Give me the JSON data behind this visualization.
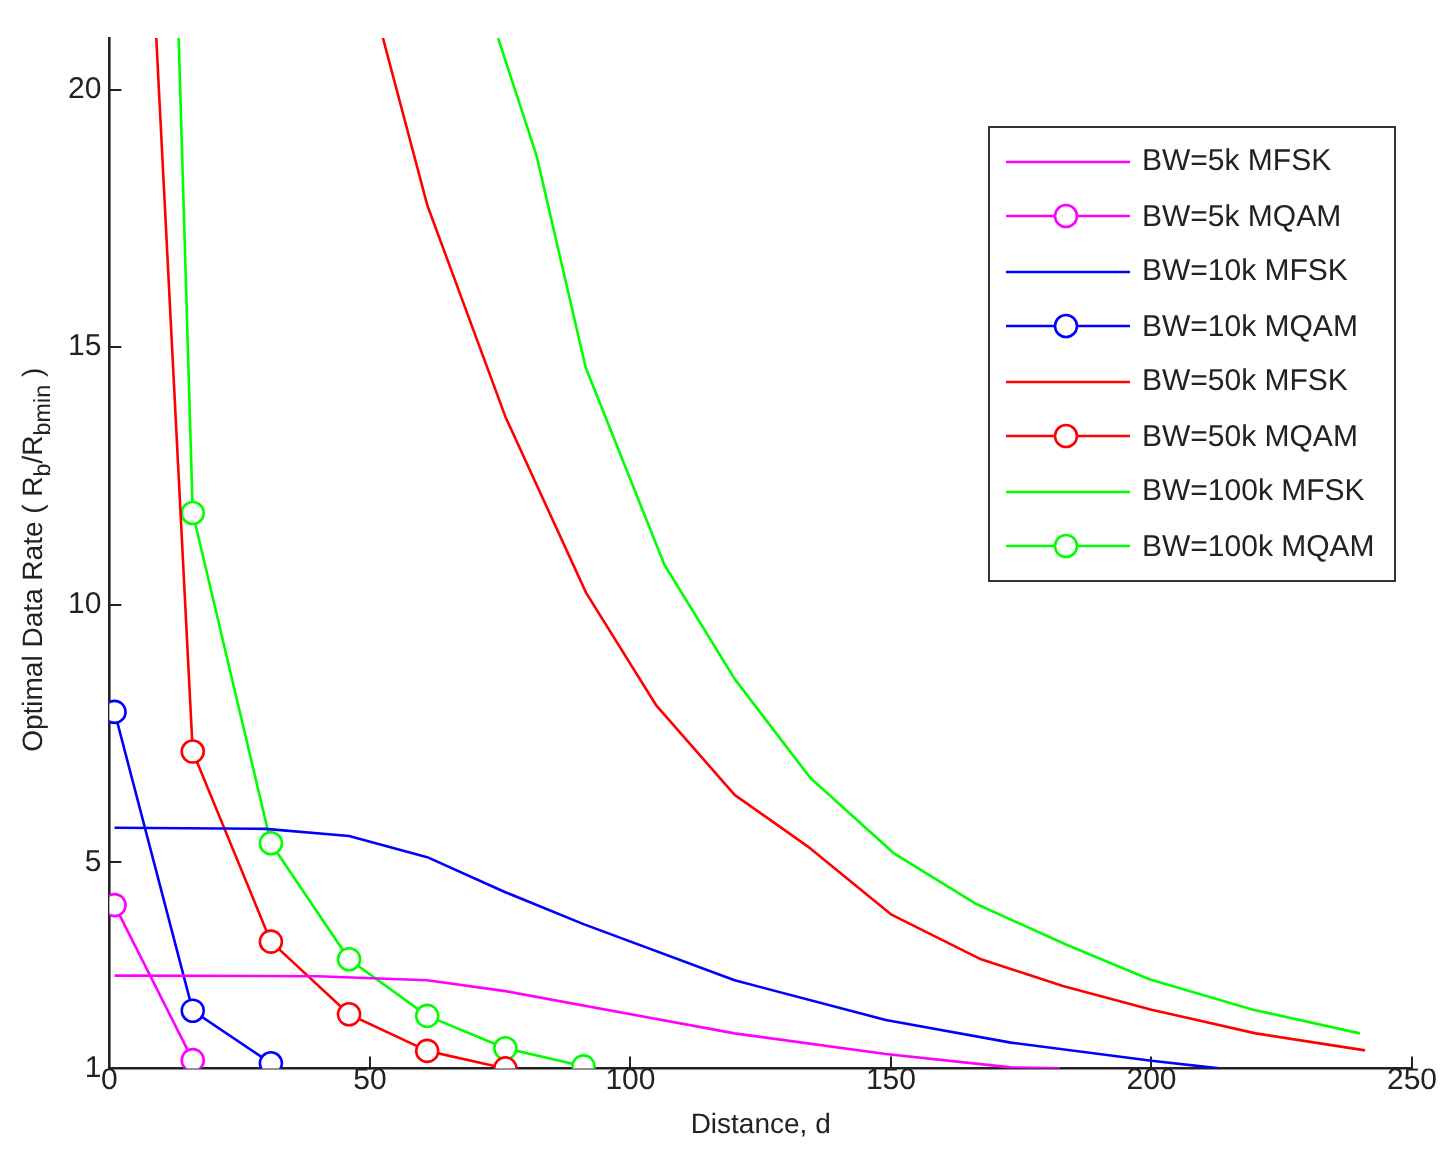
{
  "chart_data": {
    "type": "line",
    "xlabel": "Distance, d",
    "ylabel": "Optimal Data Rate ( R$_{b}$/R$_{bmin}$ )",
    "xlim": [
      0,
      250
    ],
    "xticks": [
      0,
      50,
      100,
      150,
      200,
      250
    ],
    "ylim": [
      1,
      21
    ],
    "yticks": [
      1,
      5,
      10,
      15,
      20
    ],
    "grid": false,
    "legend": "top right",
    "series": [
      {
        "name": "BW=5k MFSK",
        "color": "#ff00ff",
        "marker": "none",
        "x": [
          1,
          40,
          61,
          76,
          120,
          149,
          173,
          182.4
        ],
        "values": [
          2.8,
          2.79,
          2.71,
          2.5,
          1.68,
          1.28,
          1.02,
          1
        ]
      },
      {
        "name": "BW=5k MQAM",
        "color": "#ff00ff",
        "marker": "circle",
        "x": [
          1,
          16
        ],
        "values": [
          4.17,
          1.16
        ]
      },
      {
        "name": "BW=10k MFSK",
        "color": "#0000ff",
        "marker": "none",
        "x": [
          1,
          30,
          46,
          61,
          76,
          91,
          120,
          149,
          173,
          200,
          213
        ],
        "values": [
          5.67,
          5.65,
          5.51,
          5.1,
          4.42,
          3.8,
          2.71,
          1.94,
          1.5,
          1.15,
          1
        ]
      },
      {
        "name": "BW=10k MQAM",
        "color": "#0000ff",
        "marker": "circle",
        "x": [
          1,
          16,
          31
        ],
        "values": [
          7.92,
          2.12,
          1.1
        ]
      },
      {
        "name": "BW=50k MFSK",
        "color": "#ff0000",
        "marker": "none",
        "x": [
          52.5,
          61,
          76,
          91.5,
          105,
          120,
          134,
          150,
          167,
          183,
          200,
          220,
          241
        ],
        "values": [
          21,
          17.76,
          13.65,
          10.23,
          8.04,
          6.31,
          5.31,
          3.99,
          3.13,
          2.6,
          2.14,
          1.68,
          1.35
        ]
      },
      {
        "name": "BW=50k MQAM",
        "color": "#ff0000",
        "marker": "circle",
        "x": [
          9,
          16,
          31,
          46,
          61,
          76
        ],
        "values": [
          21,
          7.15,
          3.46,
          2.05,
          1.34,
          1
        ]
      },
      {
        "name": "BW=100k MFSK",
        "color": "#00ff00",
        "marker": "none",
        "x": [
          74.6,
          82,
          91.4,
          106.5,
          120,
          134.5,
          150.5,
          166.4,
          183.7,
          199.6,
          219.5,
          240
        ],
        "values": [
          21,
          18.71,
          14.61,
          10.78,
          8.56,
          6.64,
          5.18,
          4.19,
          3.4,
          2.73,
          2.14,
          1.68
        ]
      },
      {
        "name": "BW=100k MQAM",
        "color": "#00ff00",
        "marker": "circle",
        "x": [
          13.3,
          16,
          31,
          46,
          61,
          76,
          91
        ],
        "values": [
          21,
          11.78,
          5.37,
          3.12,
          2.02,
          1.39,
          1.04
        ]
      }
    ]
  }
}
